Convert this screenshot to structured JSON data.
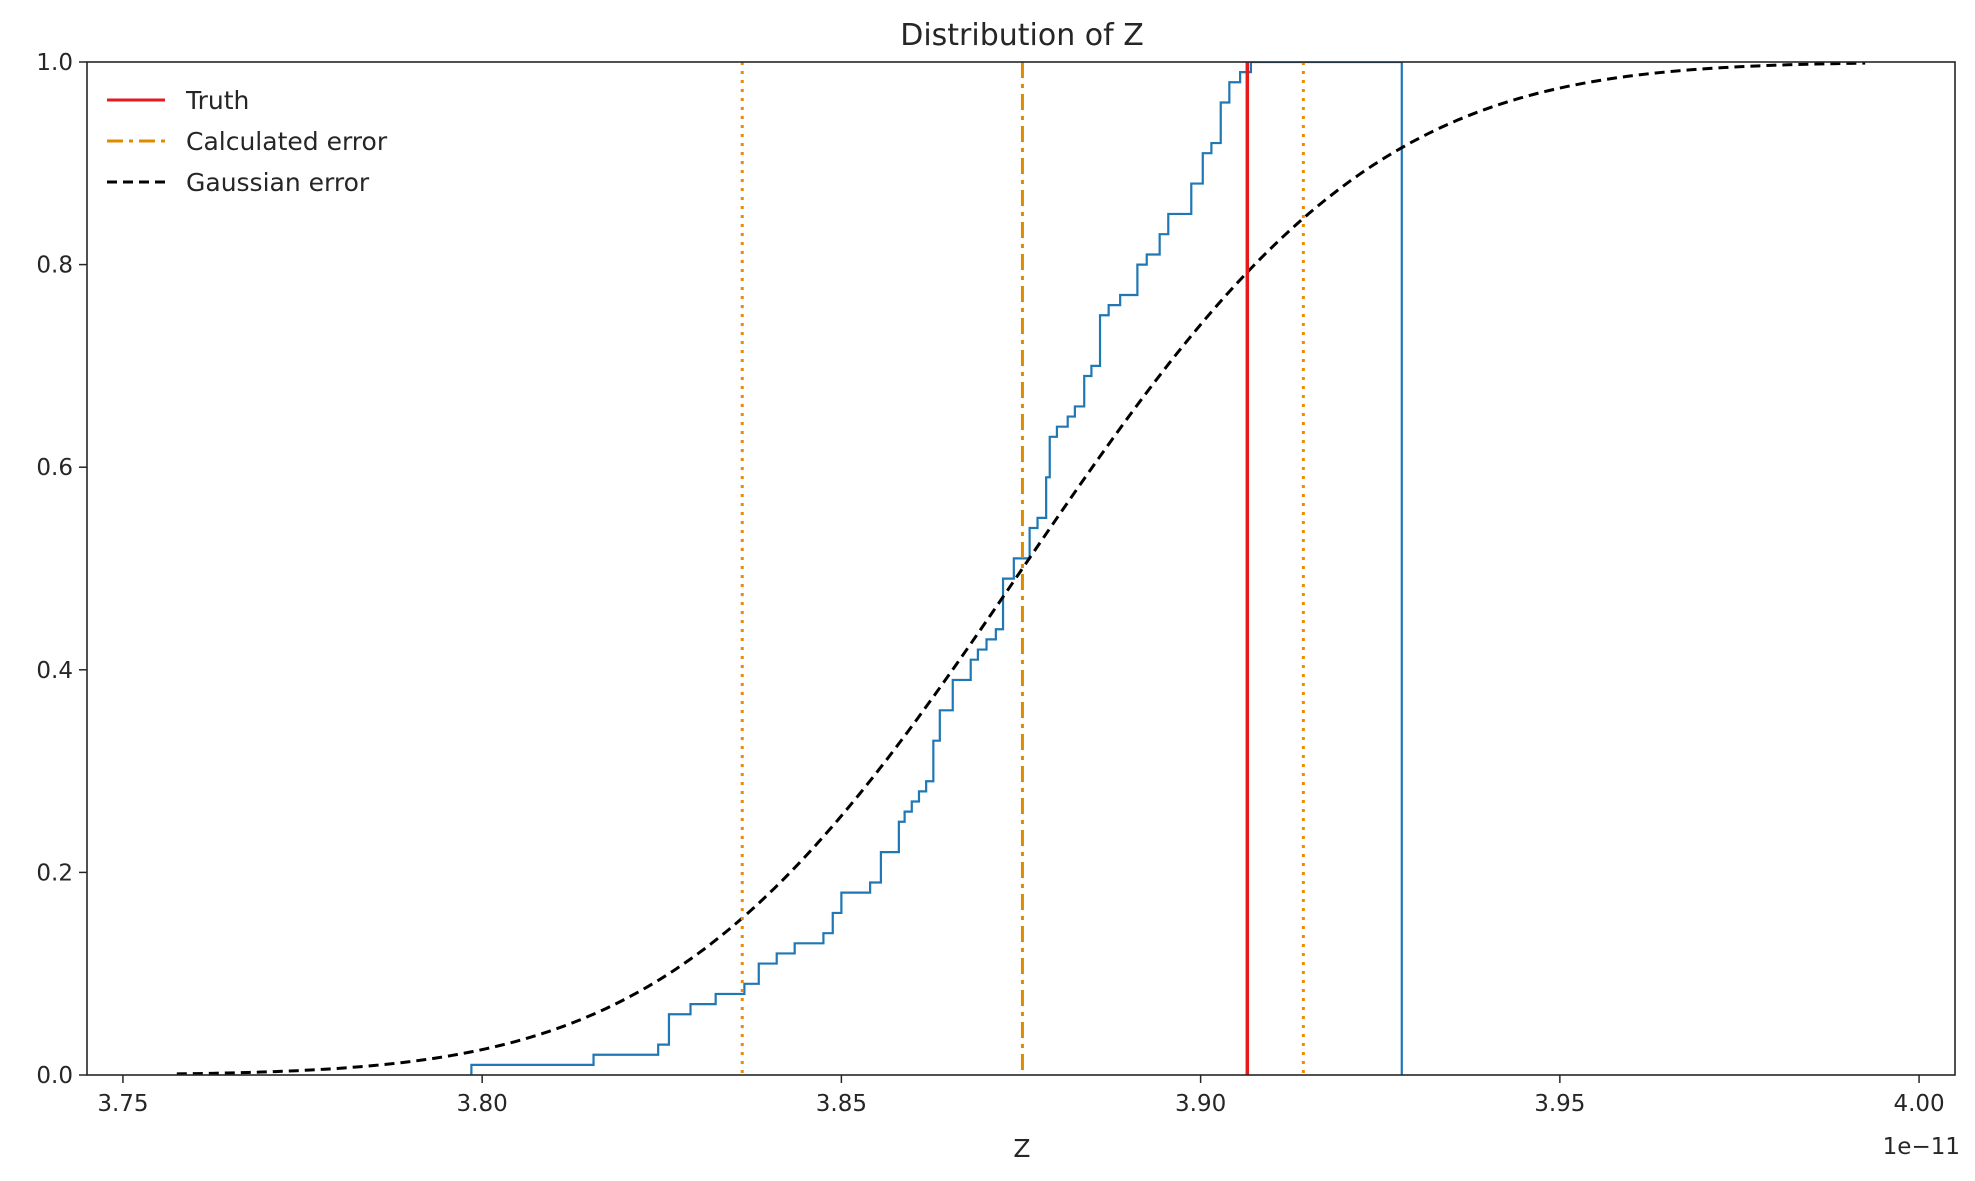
{
  "chart_data": {
    "type": "line",
    "title": "Distribution of Z",
    "xlabel": "Z",
    "ylabel": "",
    "x_offset_label": "1e−11",
    "xlim": [
      3.745,
      4.005
    ],
    "ylim": [
      0.0,
      1.0
    ],
    "x_ticks": [
      3.75,
      3.8,
      3.85,
      3.9,
      3.95,
      4.0
    ],
    "x_tick_labels": [
      "3.75",
      "3.80",
      "3.85",
      "3.90",
      "3.95",
      "4.00"
    ],
    "y_ticks": [
      0.0,
      0.2,
      0.4,
      0.6,
      0.8,
      1.0
    ],
    "y_tick_labels": [
      "0.0",
      "0.2",
      "0.4",
      "0.6",
      "0.8",
      "1.0"
    ],
    "grid": false,
    "legend": {
      "position": "top-left",
      "entries": [
        {
          "label": "Truth",
          "color": "#e41a1c",
          "style": "solid"
        },
        {
          "label": "Calculated error",
          "color": "#e08a00",
          "style": "dashdot"
        },
        {
          "label": "Gaussian error",
          "color": "#000000",
          "style": "dashed"
        }
      ]
    },
    "series": [
      {
        "kind": "ecdf_step",
        "color": "#1f77b4",
        "x": [
          3.7985,
          3.8155,
          3.8245,
          3.826,
          3.829,
          3.8325,
          3.8365,
          3.8385,
          3.841,
          3.8435,
          3.8475,
          3.8488,
          3.85,
          3.854,
          3.8555,
          3.858,
          3.8588,
          3.8598,
          3.8608,
          3.8618,
          3.8628,
          3.8637,
          3.8655,
          3.868,
          3.869,
          3.8702,
          3.8715,
          3.8725,
          3.874,
          3.8762,
          3.8773,
          3.8785,
          3.879,
          3.88,
          3.8815,
          3.8825,
          3.8838,
          3.8848,
          3.886,
          3.8872,
          3.8888,
          3.8912,
          3.8925,
          3.8943,
          3.8955,
          3.8987,
          3.9003,
          3.9015,
          3.9028,
          3.904,
          3.9055,
          3.907,
          3.909,
          3.912,
          3.9155,
          3.928
        ],
        "y": [
          0.01,
          0.02,
          0.03,
          0.06,
          0.07,
          0.08,
          0.09,
          0.11,
          0.12,
          0.13,
          0.14,
          0.16,
          0.18,
          0.19,
          0.22,
          0.25,
          0.26,
          0.27,
          0.28,
          0.29,
          0.33,
          0.36,
          0.39,
          0.41,
          0.42,
          0.43,
          0.44,
          0.49,
          0.51,
          0.54,
          0.55,
          0.59,
          0.63,
          0.64,
          0.65,
          0.66,
          0.69,
          0.7,
          0.75,
          0.76,
          0.77,
          0.8,
          0.81,
          0.83,
          0.85,
          0.88,
          0.91,
          0.92,
          0.96,
          0.98,
          0.99,
          1.0,
          1.0,
          1.0,
          1.0,
          1.0
        ],
        "x_end": 3.928
      },
      {
        "name": "Gaussian error",
        "kind": "normal_cdf",
        "color": "#000000",
        "mean": 3.8752,
        "std": 0.0384,
        "x_range": [
          3.7575,
          3.9925
        ]
      }
    ],
    "vlines": [
      {
        "label": "Truth",
        "x": 3.9065,
        "color": "#e41a1c",
        "style": "solid"
      },
      {
        "label": "Calculated error",
        "x": 3.8752,
        "color": "#e08a00",
        "style": "dashdot"
      },
      {
        "x": 3.8362,
        "color": "#f08a00",
        "style": "dotted"
      },
      {
        "x": 3.9143,
        "color": "#f08a00",
        "style": "dotted"
      }
    ]
  }
}
